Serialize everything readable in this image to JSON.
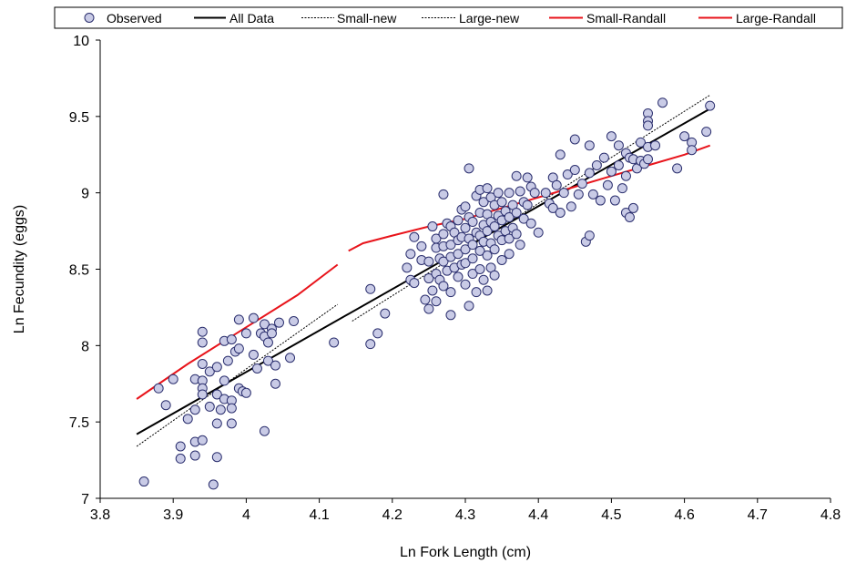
{
  "chart_data": {
    "type": "scatter",
    "xlabel": "Ln Fork Length (cm)",
    "ylabel": "Ln Fecundity (eggs)",
    "xlim": [
      3.8,
      4.8
    ],
    "ylim": [
      7,
      10
    ],
    "x_ticks": [
      "3.8",
      "3.9",
      "4",
      "4.1",
      "4.2",
      "4.3",
      "4.4",
      "4.5",
      "4.6",
      "4.7",
      "4.8"
    ],
    "y_ticks": [
      "7",
      "7.5",
      "8",
      "8.5",
      "9",
      "9.5",
      "10"
    ],
    "grid": false,
    "legend": {
      "placement": "top",
      "entries": [
        "Observed",
        "All Data",
        "Small-new",
        "Large-new",
        "Small-Randall",
        "Large-Randall"
      ]
    },
    "colors": {
      "marker_fill": "#c9cbe6",
      "marker_stroke": "#2b2f6e",
      "all_data": "#000000",
      "new_fits": "#000000",
      "randall_fits": "#e8141b"
    },
    "series": [
      {
        "name": "Observed",
        "type": "scatter",
        "points": [
          [
            3.86,
            7.11
          ],
          [
            3.88,
            7.72
          ],
          [
            3.89,
            7.61
          ],
          [
            3.9,
            7.78
          ],
          [
            3.91,
            7.34
          ],
          [
            3.91,
            7.26
          ],
          [
            3.92,
            7.52
          ],
          [
            3.93,
            7.58
          ],
          [
            3.93,
            7.78
          ],
          [
            3.93,
            7.37
          ],
          [
            3.93,
            7.28
          ],
          [
            3.94,
            8.09
          ],
          [
            3.94,
            8.02
          ],
          [
            3.94,
            7.88
          ],
          [
            3.94,
            7.77
          ],
          [
            3.94,
            7.72
          ],
          [
            3.94,
            7.68
          ],
          [
            3.94,
            7.38
          ],
          [
            3.95,
            7.6
          ],
          [
            3.95,
            7.83
          ],
          [
            3.955,
            7.09
          ],
          [
            3.96,
            7.86
          ],
          [
            3.96,
            7.68
          ],
          [
            3.96,
            7.49
          ],
          [
            3.96,
            7.27
          ],
          [
            3.965,
            7.58
          ],
          [
            3.97,
            8.03
          ],
          [
            3.97,
            7.65
          ],
          [
            3.97,
            7.77
          ],
          [
            3.975,
            7.9
          ],
          [
            3.98,
            8.04
          ],
          [
            3.98,
            7.64
          ],
          [
            3.98,
            7.59
          ],
          [
            3.98,
            7.49
          ],
          [
            3.985,
            7.96
          ],
          [
            3.99,
            8.17
          ],
          [
            3.99,
            7.98
          ],
          [
            3.99,
            7.72
          ],
          [
            3.995,
            7.7
          ],
          [
            4.0,
            8.08
          ],
          [
            4.0,
            7.69
          ],
          [
            4.01,
            8.18
          ],
          [
            4.01,
            7.94
          ],
          [
            4.015,
            7.85
          ],
          [
            4.02,
            8.08
          ],
          [
            4.025,
            8.14
          ],
          [
            4.025,
            8.06
          ],
          [
            4.025,
            7.44
          ],
          [
            4.03,
            8.02
          ],
          [
            4.03,
            7.9
          ],
          [
            4.035,
            8.11
          ],
          [
            4.035,
            8.08
          ],
          [
            4.04,
            7.87
          ],
          [
            4.04,
            7.75
          ],
          [
            4.045,
            8.15
          ],
          [
            4.06,
            7.92
          ],
          [
            4.065,
            8.16
          ],
          [
            4.12,
            8.02
          ],
          [
            4.17,
            8.37
          ],
          [
            4.17,
            8.01
          ],
          [
            4.18,
            8.08
          ],
          [
            4.19,
            8.21
          ],
          [
            4.22,
            8.51
          ],
          [
            4.225,
            8.6
          ],
          [
            4.225,
            8.43
          ],
          [
            4.23,
            8.41
          ],
          [
            4.23,
            8.71
          ],
          [
            4.24,
            8.65
          ],
          [
            4.24,
            8.56
          ],
          [
            4.245,
            8.3
          ],
          [
            4.25,
            8.55
          ],
          [
            4.25,
            8.44
          ],
          [
            4.25,
            8.24
          ],
          [
            4.255,
            8.78
          ],
          [
            4.255,
            8.36
          ],
          [
            4.26,
            8.7
          ],
          [
            4.26,
            8.64
          ],
          [
            4.26,
            8.47
          ],
          [
            4.26,
            8.29
          ],
          [
            4.265,
            8.57
          ],
          [
            4.265,
            8.43
          ],
          [
            4.27,
            8.99
          ],
          [
            4.27,
            8.73
          ],
          [
            4.27,
            8.65
          ],
          [
            4.27,
            8.55
          ],
          [
            4.27,
            8.39
          ],
          [
            4.275,
            8.8
          ],
          [
            4.275,
            8.49
          ],
          [
            4.28,
            8.78
          ],
          [
            4.28,
            8.66
          ],
          [
            4.28,
            8.58
          ],
          [
            4.28,
            8.35
          ],
          [
            4.28,
            8.2
          ],
          [
            4.285,
            8.74
          ],
          [
            4.285,
            8.51
          ],
          [
            4.29,
            8.82
          ],
          [
            4.29,
            8.69
          ],
          [
            4.29,
            8.6
          ],
          [
            4.29,
            8.45
          ],
          [
            4.295,
            8.89
          ],
          [
            4.295,
            8.71
          ],
          [
            4.295,
            8.53
          ],
          [
            4.3,
            8.91
          ],
          [
            4.3,
            8.77
          ],
          [
            4.3,
            8.63
          ],
          [
            4.3,
            8.54
          ],
          [
            4.3,
            8.4
          ],
          [
            4.305,
            9.16
          ],
          [
            4.305,
            8.84
          ],
          [
            4.305,
            8.7
          ],
          [
            4.305,
            8.26
          ],
          [
            4.31,
            8.81
          ],
          [
            4.31,
            8.66
          ],
          [
            4.31,
            8.57
          ],
          [
            4.31,
            8.47
          ],
          [
            4.315,
            8.98
          ],
          [
            4.315,
            8.74
          ],
          [
            4.315,
            8.35
          ],
          [
            4.32,
            9.02
          ],
          [
            4.32,
            8.87
          ],
          [
            4.32,
            8.72
          ],
          [
            4.32,
            8.62
          ],
          [
            4.32,
            8.5
          ],
          [
            4.325,
            8.94
          ],
          [
            4.325,
            8.79
          ],
          [
            4.325,
            8.68
          ],
          [
            4.325,
            8.43
          ],
          [
            4.33,
            9.03
          ],
          [
            4.33,
            8.86
          ],
          [
            4.33,
            8.75
          ],
          [
            4.33,
            8.59
          ],
          [
            4.33,
            8.36
          ],
          [
            4.335,
            8.97
          ],
          [
            4.335,
            8.81
          ],
          [
            4.335,
            8.67
          ],
          [
            4.335,
            8.51
          ],
          [
            4.34,
            8.92
          ],
          [
            4.34,
            8.78
          ],
          [
            4.34,
            8.63
          ],
          [
            4.34,
            8.46
          ],
          [
            4.345,
            9.0
          ],
          [
            4.345,
            8.85
          ],
          [
            4.345,
            8.72
          ],
          [
            4.35,
            8.94
          ],
          [
            4.35,
            8.82
          ],
          [
            4.35,
            8.69
          ],
          [
            4.35,
            8.56
          ],
          [
            4.355,
            8.88
          ],
          [
            4.355,
            8.75
          ],
          [
            4.36,
            9.0
          ],
          [
            4.36,
            8.84
          ],
          [
            4.36,
            8.7
          ],
          [
            4.36,
            8.6
          ],
          [
            4.365,
            8.92
          ],
          [
            4.365,
            8.77
          ],
          [
            4.37,
            9.11
          ],
          [
            4.37,
            8.87
          ],
          [
            4.37,
            8.73
          ],
          [
            4.375,
            9.01
          ],
          [
            4.375,
            8.66
          ],
          [
            4.38,
            8.94
          ],
          [
            4.38,
            8.83
          ],
          [
            4.385,
            9.1
          ],
          [
            4.385,
            8.92
          ],
          [
            4.39,
            9.04
          ],
          [
            4.39,
            8.8
          ],
          [
            4.395,
            9.0
          ],
          [
            4.4,
            8.74
          ],
          [
            4.41,
            9.0
          ],
          [
            4.415,
            8.93
          ],
          [
            4.42,
            9.1
          ],
          [
            4.42,
            8.9
          ],
          [
            4.425,
            9.05
          ],
          [
            4.43,
            9.25
          ],
          [
            4.43,
            8.87
          ],
          [
            4.435,
            9.0
          ],
          [
            4.44,
            9.12
          ],
          [
            4.445,
            8.91
          ],
          [
            4.45,
            9.35
          ],
          [
            4.45,
            9.15
          ],
          [
            4.455,
            8.99
          ],
          [
            4.46,
            9.06
          ],
          [
            4.465,
            8.68
          ],
          [
            4.47,
            9.31
          ],
          [
            4.47,
            9.13
          ],
          [
            4.47,
            8.72
          ],
          [
            4.475,
            8.99
          ],
          [
            4.48,
            9.18
          ],
          [
            4.485,
            8.95
          ],
          [
            4.49,
            9.23
          ],
          [
            4.495,
            9.05
          ],
          [
            4.5,
            9.37
          ],
          [
            4.5,
            9.14
          ],
          [
            4.505,
            8.95
          ],
          [
            4.51,
            9.31
          ],
          [
            4.51,
            9.18
          ],
          [
            4.515,
            9.03
          ],
          [
            4.52,
            9.26
          ],
          [
            4.52,
            9.11
          ],
          [
            4.52,
            8.87
          ],
          [
            4.525,
            9.23
          ],
          [
            4.525,
            8.84
          ],
          [
            4.53,
            9.22
          ],
          [
            4.53,
            8.9
          ],
          [
            4.535,
            9.16
          ],
          [
            4.54,
            9.33
          ],
          [
            4.54,
            9.21
          ],
          [
            4.545,
            9.19
          ],
          [
            4.55,
            9.52
          ],
          [
            4.55,
            9.47
          ],
          [
            4.55,
            9.44
          ],
          [
            4.55,
            9.3
          ],
          [
            4.55,
            9.22
          ],
          [
            4.56,
            9.31
          ],
          [
            4.57,
            9.59
          ],
          [
            4.59,
            9.16
          ],
          [
            4.6,
            9.37
          ],
          [
            4.61,
            9.33
          ],
          [
            4.61,
            9.28
          ],
          [
            4.63,
            9.4
          ],
          [
            4.635,
            9.57
          ]
        ]
      },
      {
        "name": "All Data",
        "type": "line",
        "style": "solid",
        "color": "#000000",
        "points": [
          [
            3.85,
            7.42
          ],
          [
            4.635,
            9.55
          ]
        ]
      },
      {
        "name": "Small-new",
        "type": "line",
        "style": "dashed",
        "color": "#000000",
        "points": [
          [
            3.85,
            7.34
          ],
          [
            4.125,
            8.27
          ]
        ]
      },
      {
        "name": "Large-new",
        "type": "line",
        "style": "dashed",
        "color": "#000000",
        "points": [
          [
            4.145,
            8.16
          ],
          [
            4.635,
            9.64
          ]
        ]
      },
      {
        "name": "Small-Randall",
        "type": "line",
        "style": "solid",
        "color": "#e8141b",
        "points": [
          [
            3.85,
            7.65
          ],
          [
            3.92,
            7.88
          ],
          [
            4.0,
            8.12
          ],
          [
            4.07,
            8.33
          ],
          [
            4.125,
            8.53
          ]
        ]
      },
      {
        "name": "Large-Randall",
        "type": "line",
        "style": "solid",
        "color": "#e8141b",
        "points": [
          [
            4.14,
            8.62
          ],
          [
            4.16,
            8.67
          ],
          [
            4.2,
            8.72
          ],
          [
            4.25,
            8.78
          ],
          [
            4.3,
            8.83
          ],
          [
            4.35,
            8.9
          ],
          [
            4.4,
            8.97
          ],
          [
            4.45,
            9.04
          ],
          [
            4.5,
            9.11
          ],
          [
            4.55,
            9.18
          ],
          [
            4.6,
            9.25
          ],
          [
            4.635,
            9.31
          ]
        ]
      }
    ]
  }
}
